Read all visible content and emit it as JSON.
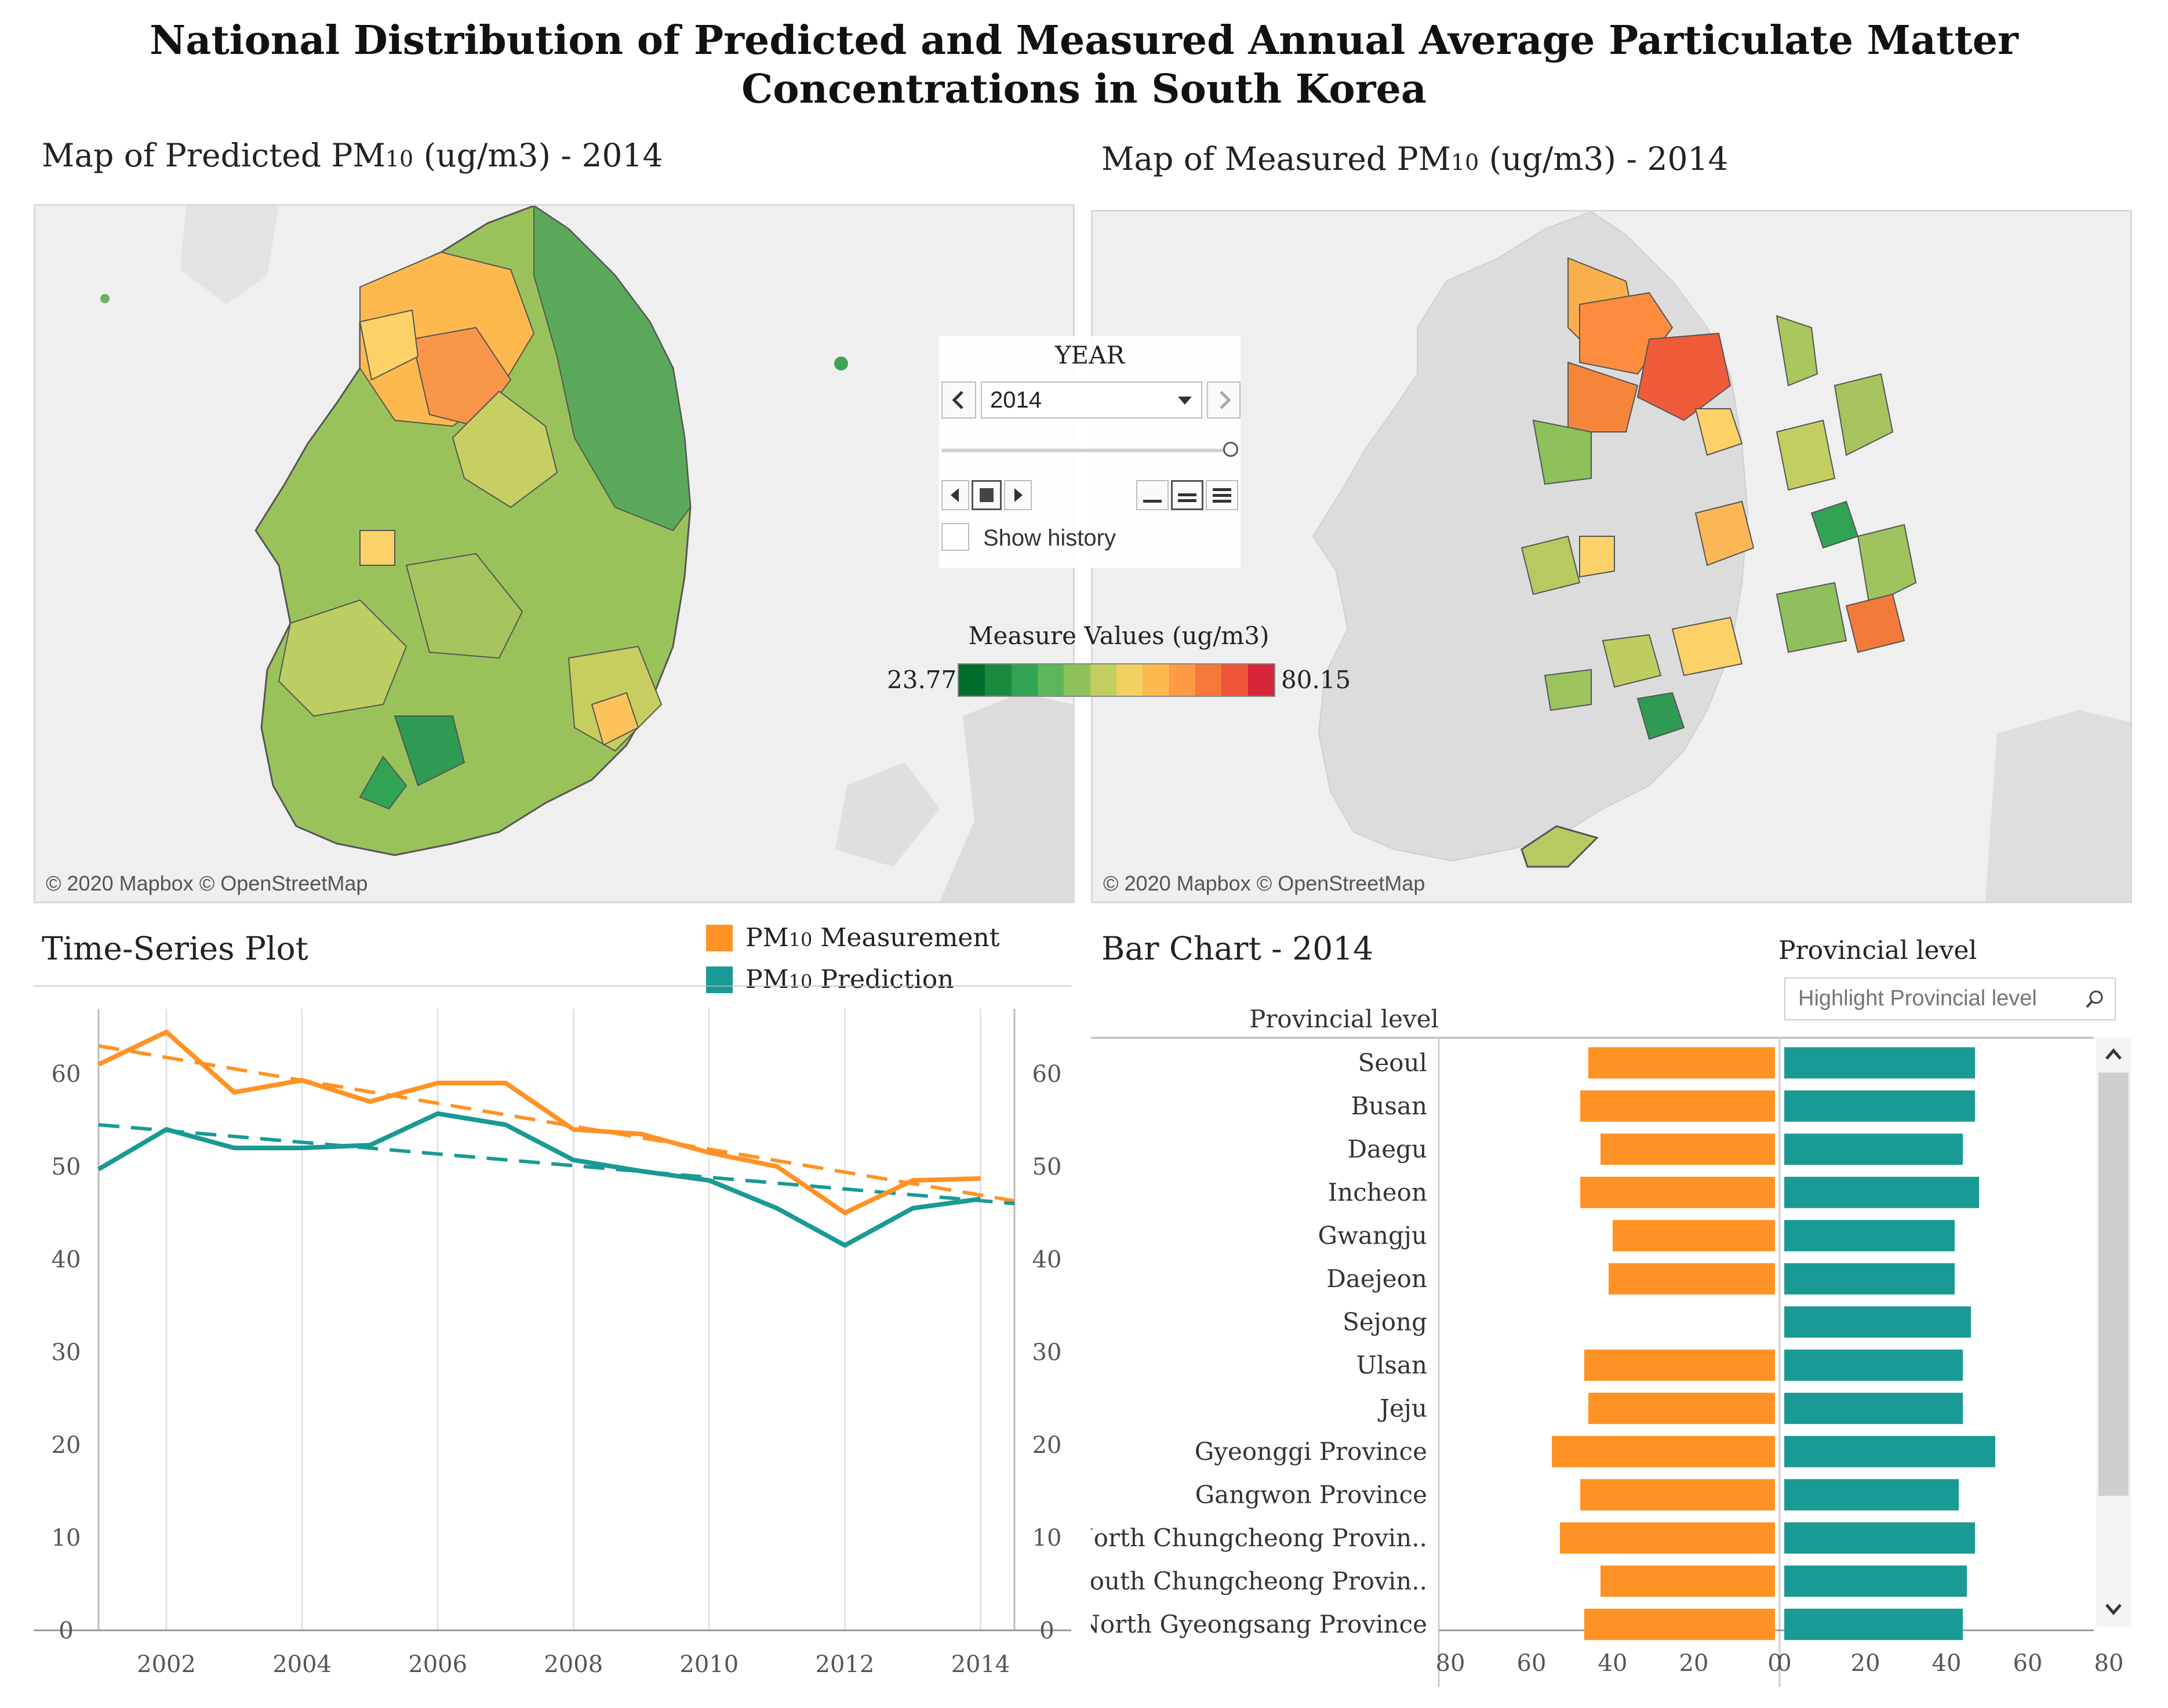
{
  "title": {
    "line1": "National Distribution of Predicted and Measured Annual Average Particulate Matter",
    "line2": "Concentrations in South Korea"
  },
  "map_predicted": {
    "title_pre": "Map of Predicted PM",
    "title_sub": "10",
    "title_post": " (ug/m3) - 2014",
    "copyright": "© 2020 Mapbox © OpenStreetMap"
  },
  "map_measured": {
    "title_pre": "Map of Measured PM",
    "title_sub": "10",
    "title_post": " (ug/m3) - 2014",
    "copyright": "© 2020 Mapbox © OpenStreetMap"
  },
  "year_control": {
    "label": "YEAR",
    "value": "2014",
    "show_history": "Show history",
    "prev_icon": "chevron-left-icon",
    "next_icon": "chevron-right-icon",
    "dropdown_icon": "caret-down-icon"
  },
  "color_legend": {
    "title": "Measure Values (ug/m3)",
    "min": "23.77",
    "max": "80.15",
    "colors": [
      "#006d2c",
      "#1a8a3e",
      "#31a354",
      "#5db65a",
      "#8cc15c",
      "#c2ce5f",
      "#f3d160",
      "#fdb94e",
      "#fd9a43",
      "#f7783b",
      "#ee5537",
      "#d7263a"
    ]
  },
  "timeseries": {
    "title": "Time-Series Plot",
    "legend": [
      {
        "label_pre": "PM",
        "label_sub": "10",
        "label_post": " Measurement",
        "color": "#ff9224"
      },
      {
        "label_pre": "PM",
        "label_sub": "10",
        "label_post": " Prediction",
        "color": "#1a9a94"
      }
    ]
  },
  "barchart": {
    "title": "Bar Chart - 2014",
    "filter_label": "Provincial level",
    "search_placeholder": "Highlight Provincial level",
    "column_header": "Provincial level",
    "left_axis_ticks": [
      "80",
      "60",
      "40",
      "20",
      "0"
    ],
    "right_axis_ticks": [
      "0",
      "20",
      "40",
      "60",
      "80"
    ]
  },
  "chart_data": [
    {
      "type": "line",
      "title": "Time-Series Plot",
      "x": [
        2001,
        2002,
        2003,
        2004,
        2005,
        2006,
        2007,
        2008,
        2009,
        2010,
        2011,
        2012,
        2013,
        2014
      ],
      "x_ticks": [
        "2002",
        "2004",
        "2006",
        "2008",
        "2010",
        "2012",
        "2014"
      ],
      "y_ticks": [
        "0",
        "10",
        "20",
        "30",
        "40",
        "50",
        "60"
      ],
      "ylim": [
        0,
        67
      ],
      "xlim": [
        2001,
        2014.5
      ],
      "series": [
        {
          "name": "PM10 Measurement",
          "color": "#ff9224",
          "values": [
            61,
            64.5,
            58,
            59.3,
            57,
            59,
            59,
            54,
            53.5,
            51.5,
            50,
            45,
            48.5,
            48.7
          ]
        },
        {
          "name": "PM10 Prediction",
          "color": "#1a9a94",
          "values": [
            49.7,
            54,
            52,
            52,
            52.3,
            55.7,
            54.5,
            50.7,
            49.5,
            48.5,
            45.5,
            41.5,
            45.5,
            46.5
          ]
        }
      ],
      "trend_lines": [
        {
          "name": "PM10 Measurement trend",
          "color": "#ff9224",
          "start": [
            2001,
            63
          ],
          "end": [
            2014.5,
            46.3
          ]
        },
        {
          "name": "PM10 Prediction trend",
          "color": "#1a9a94",
          "start": [
            2001,
            54.5
          ],
          "end": [
            2014.5,
            46
          ]
        }
      ]
    },
    {
      "type": "bar",
      "title": "Bar Chart - 2014",
      "categories": [
        "Seoul",
        "Busan",
        "Daegu",
        "Incheon",
        "Gwangju",
        "Daejeon",
        "Sejong",
        "Ulsan",
        "Jeju",
        "Gyeonggi Province",
        "Gangwon Province",
        "North Chungcheong Provin..",
        "South Chungcheong Provin..",
        "North Gyeongsang Province"
      ],
      "series": [
        {
          "name": "PM10 Measurement",
          "color": "#ff9224",
          "values": [
            46,
            48,
            43,
            48,
            40,
            41,
            0,
            47,
            46,
            55,
            48,
            53,
            43,
            47
          ]
        },
        {
          "name": "PM10 Prediction",
          "color": "#1a9a94",
          "values": [
            47,
            47,
            44,
            48,
            42,
            42,
            46,
            44,
            44,
            52,
            43,
            47,
            45,
            44
          ]
        }
      ],
      "xlim": [
        0,
        80
      ]
    }
  ]
}
